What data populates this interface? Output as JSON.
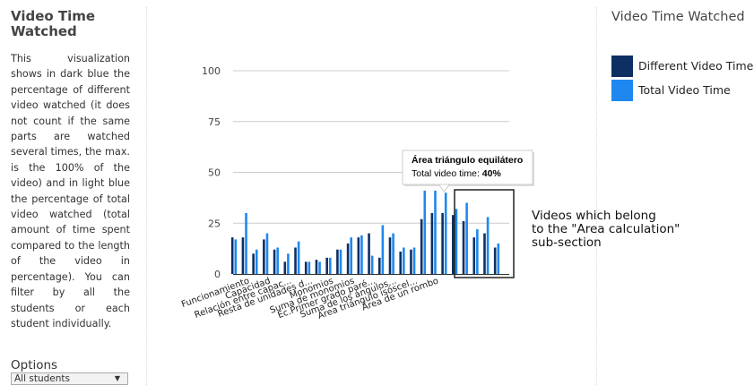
{
  "sidebar": {
    "title": "Video Time Watched",
    "description": "This visualization shows in dark blue the percentage of different video watched (it does not count if the same parts are watched several times, the max. is the 100% of the video) and in light blue the percentage of total video watched (total amount of time spent compared to the length of the video in percentage). You can filter by all the students or each student individually.",
    "options_label": "Options",
    "select_value": "All students"
  },
  "legend": {
    "title": "Video Time Watched",
    "items": [
      {
        "label": "Different Video Time",
        "color": "#0d2f63"
      },
      {
        "label": "Total Video Time",
        "color": "#1e88f0"
      }
    ]
  },
  "tooltip": {
    "title": "Área triángulo equilátero",
    "label": "Total video time:",
    "value": "40%"
  },
  "annotation": {
    "lines": [
      "Videos which belong",
      "to the \"Area calculation\"",
      "sub-section"
    ]
  },
  "chart_data": {
    "type": "bar",
    "ylim": [
      0,
      100
    ],
    "yticks": [
      0,
      25,
      50,
      75,
      100
    ],
    "grid": true,
    "colors": {
      "different": "#0d2f63",
      "total": "#1e88f0"
    },
    "x_tick_labels": [
      {
        "text": "Funcionamiento",
        "at": 1
      },
      {
        "text": "Capacidad",
        "at": 3
      },
      {
        "text": "Relación entre capac...",
        "at": 5
      },
      {
        "text": "Resta de unidades d...",
        "at": 7
      },
      {
        "text": "Monomios",
        "at": 9
      },
      {
        "text": "Suma de monomios",
        "at": 11
      },
      {
        "text": "Ec.Primer grado paré...",
        "at": 13
      },
      {
        "text": "Suma de los ángulos...",
        "at": 15
      },
      {
        "text": "Área triángulo isóscel...",
        "at": 17
      },
      {
        "text": "Área de un rombo",
        "at": 19
      }
    ],
    "series": [
      {
        "name": "Different Video Time",
        "values": [
          18,
          18,
          10,
          17,
          12,
          6,
          13,
          6,
          7,
          8,
          12,
          15,
          18,
          20,
          8,
          18,
          11,
          12,
          27,
          30,
          30,
          29,
          26,
          18,
          20,
          13
        ]
      },
      {
        "name": "Total Video Time",
        "values": [
          17,
          30,
          12,
          20,
          13,
          10,
          16,
          6,
          6,
          8,
          12,
          18,
          19,
          9,
          24,
          20,
          13,
          13,
          41,
          41,
          40,
          32,
          35,
          22,
          28,
          15
        ]
      }
    ],
    "highlight_index": 20
  }
}
